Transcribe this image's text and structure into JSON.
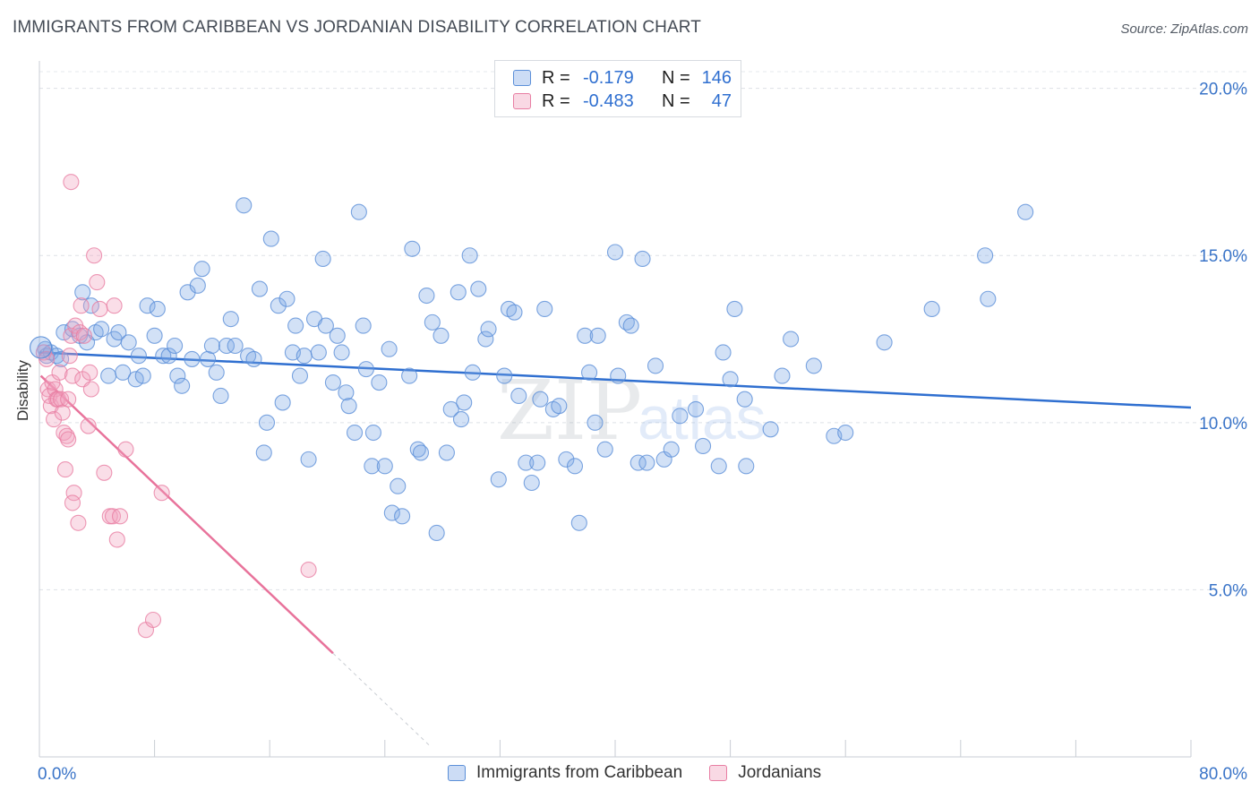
{
  "header": {
    "title": "IMMIGRANTS FROM CARIBBEAN VS JORDANIAN DISABILITY CORRELATION CHART",
    "source": "Source: ZipAtlas.com"
  },
  "legend": {
    "r_label": "R =",
    "n_label": "N =",
    "rows": [
      {
        "r": "-0.179",
        "n": "146",
        "color": "#7fa8e6"
      },
      {
        "r": "-0.483",
        "n": "47",
        "color": "#f0a0bc"
      }
    ]
  },
  "watermark": {
    "zip": "ZIP",
    "atlas": "atlas"
  },
  "chart_data": {
    "type": "scatter",
    "ylabel": "Disability",
    "xlim": [
      0,
      80
    ],
    "ylim": [
      0,
      20.5
    ],
    "y_ticks": [
      {
        "value": 5,
        "label": "5.0%"
      },
      {
        "value": 10,
        "label": "10.0%"
      },
      {
        "value": 15,
        "label": "15.0%"
      },
      {
        "value": 20,
        "label": "20.0%"
      }
    ],
    "x_tick_labels": [
      {
        "value": 0,
        "label": "0.0%"
      },
      {
        "value": 80,
        "label": "80.0%"
      }
    ],
    "x_minor_ticks": [
      0,
      8,
      16,
      24,
      32,
      40,
      48,
      56,
      64,
      72,
      80
    ],
    "grid": true,
    "series": [
      {
        "name": "Immigrants from Caribbean",
        "color": "#7fa8e6",
        "stroke": "#5b8fd8",
        "trend": {
          "x": [
            0,
            80
          ],
          "y": [
            12.1,
            10.45
          ],
          "color": "#2f6fd0"
        },
        "points": [
          [
            0.4,
            12.2
          ],
          [
            0.5,
            12.0
          ],
          [
            0.8,
            12.1
          ],
          [
            1.2,
            12.0
          ],
          [
            1.5,
            11.9
          ],
          [
            1.7,
            12.7
          ],
          [
            2.3,
            12.8
          ],
          [
            2.8,
            12.6
          ],
          [
            3.0,
            13.9
          ],
          [
            3.3,
            12.4
          ],
          [
            3.6,
            13.5
          ],
          [
            3.9,
            12.7
          ],
          [
            4.3,
            12.8
          ],
          [
            4.8,
            11.4
          ],
          [
            5.2,
            12.5
          ],
          [
            5.5,
            12.7
          ],
          [
            5.8,
            11.5
          ],
          [
            6.2,
            12.4
          ],
          [
            6.7,
            11.3
          ],
          [
            6.9,
            12.0
          ],
          [
            7.2,
            11.4
          ],
          [
            7.5,
            13.5
          ],
          [
            8.0,
            12.6
          ],
          [
            8.2,
            13.4
          ],
          [
            8.6,
            12.0
          ],
          [
            9.0,
            12.0
          ],
          [
            9.4,
            12.3
          ],
          [
            9.6,
            11.4
          ],
          [
            9.9,
            11.1
          ],
          [
            10.3,
            13.9
          ],
          [
            10.6,
            11.9
          ],
          [
            11.0,
            14.1
          ],
          [
            11.3,
            14.6
          ],
          [
            11.7,
            11.9
          ],
          [
            12.0,
            12.3
          ],
          [
            12.3,
            11.5
          ],
          [
            12.6,
            10.8
          ],
          [
            13.0,
            12.3
          ],
          [
            13.3,
            13.1
          ],
          [
            13.6,
            12.3
          ],
          [
            14.2,
            16.5
          ],
          [
            14.5,
            12.0
          ],
          [
            14.9,
            11.9
          ],
          [
            15.3,
            14.0
          ],
          [
            15.6,
            9.1
          ],
          [
            15.8,
            10.0
          ],
          [
            16.1,
            15.5
          ],
          [
            16.6,
            13.5
          ],
          [
            16.9,
            10.6
          ],
          [
            17.2,
            13.7
          ],
          [
            17.6,
            12.1
          ],
          [
            17.8,
            12.9
          ],
          [
            18.1,
            11.4
          ],
          [
            18.4,
            12.0
          ],
          [
            18.7,
            8.9
          ],
          [
            19.1,
            13.1
          ],
          [
            19.4,
            12.1
          ],
          [
            19.7,
            14.9
          ],
          [
            19.9,
            12.9
          ],
          [
            20.4,
            11.2
          ],
          [
            20.7,
            12.6
          ],
          [
            21.0,
            12.1
          ],
          [
            21.3,
            10.9
          ],
          [
            21.5,
            10.5
          ],
          [
            21.9,
            9.7
          ],
          [
            22.2,
            16.3
          ],
          [
            22.5,
            12.9
          ],
          [
            22.7,
            11.6
          ],
          [
            23.1,
            8.7
          ],
          [
            23.2,
            9.7
          ],
          [
            23.6,
            11.2
          ],
          [
            24.0,
            8.7
          ],
          [
            24.3,
            12.2
          ],
          [
            24.5,
            7.3
          ],
          [
            24.9,
            8.1
          ],
          [
            25.2,
            7.2
          ],
          [
            25.7,
            11.4
          ],
          [
            25.9,
            15.2
          ],
          [
            26.3,
            9.2
          ],
          [
            26.5,
            9.1
          ],
          [
            26.9,
            13.8
          ],
          [
            27.3,
            13.0
          ],
          [
            27.6,
            6.7
          ],
          [
            27.9,
            12.6
          ],
          [
            28.3,
            9.1
          ],
          [
            28.6,
            10.4
          ],
          [
            29.1,
            13.9
          ],
          [
            29.3,
            10.1
          ],
          [
            29.5,
            10.6
          ],
          [
            29.9,
            15.0
          ],
          [
            30.1,
            11.5
          ],
          [
            30.5,
            14.0
          ],
          [
            31.0,
            12.5
          ],
          [
            31.2,
            12.8
          ],
          [
            31.9,
            8.3
          ],
          [
            32.3,
            11.4
          ],
          [
            32.6,
            13.4
          ],
          [
            33.0,
            13.3
          ],
          [
            33.3,
            10.8
          ],
          [
            33.8,
            8.8
          ],
          [
            34.2,
            8.2
          ],
          [
            34.6,
            8.8
          ],
          [
            34.8,
            10.7
          ],
          [
            35.1,
            13.4
          ],
          [
            35.7,
            10.4
          ],
          [
            36.1,
            10.5
          ],
          [
            36.6,
            8.9
          ],
          [
            37.2,
            8.7
          ],
          [
            37.5,
            7.0
          ],
          [
            37.9,
            12.6
          ],
          [
            38.2,
            11.5
          ],
          [
            38.6,
            10.0
          ],
          [
            38.8,
            12.6
          ],
          [
            39.3,
            9.2
          ],
          [
            40.0,
            15.1
          ],
          [
            40.2,
            11.4
          ],
          [
            40.8,
            13.0
          ],
          [
            41.1,
            12.9
          ],
          [
            41.6,
            8.8
          ],
          [
            41.9,
            14.9
          ],
          [
            42.2,
            8.8
          ],
          [
            42.8,
            11.7
          ],
          [
            43.4,
            8.9
          ],
          [
            43.9,
            9.2
          ],
          [
            44.5,
            10.2
          ],
          [
            45.6,
            10.4
          ],
          [
            46.1,
            9.3
          ],
          [
            47.2,
            8.7
          ],
          [
            47.5,
            12.1
          ],
          [
            48.0,
            11.3
          ],
          [
            48.3,
            13.4
          ],
          [
            49.0,
            10.7
          ],
          [
            49.1,
            8.7
          ],
          [
            50.8,
            9.8
          ],
          [
            51.6,
            11.4
          ],
          [
            52.2,
            12.5
          ],
          [
            53.8,
            11.7
          ],
          [
            55.2,
            9.6
          ],
          [
            56.0,
            9.7
          ],
          [
            58.7,
            12.4
          ],
          [
            62.0,
            13.4
          ],
          [
            65.7,
            15.0
          ],
          [
            65.9,
            13.7
          ],
          [
            68.5,
            16.3
          ]
        ]
      },
      {
        "name": "Jordanians",
        "color": "#f0a0bc",
        "stroke": "#e87ea3",
        "trend": {
          "x": [
            0.1,
            20.4
          ],
          "y": [
            11.4,
            3.1
          ],
          "dash_to": [
            27.2,
            0.3
          ],
          "color": "#e8739b"
        },
        "points": [
          [
            0.3,
            12.1
          ],
          [
            0.5,
            11.9
          ],
          [
            0.6,
            11.0
          ],
          [
            0.7,
            10.8
          ],
          [
            0.8,
            10.5
          ],
          [
            0.9,
            11.2
          ],
          [
            1.0,
            10.1
          ],
          [
            1.1,
            11.0
          ],
          [
            1.2,
            10.7
          ],
          [
            1.3,
            10.7
          ],
          [
            1.4,
            11.5
          ],
          [
            1.5,
            10.7
          ],
          [
            1.6,
            10.3
          ],
          [
            1.7,
            9.7
          ],
          [
            1.8,
            8.6
          ],
          [
            1.9,
            9.6
          ],
          [
            2.0,
            10.7
          ],
          [
            2.1,
            12.0
          ],
          [
            2.2,
            12.6
          ],
          [
            2.3,
            11.4
          ],
          [
            2.4,
            7.9
          ],
          [
            2.5,
            12.9
          ],
          [
            2.7,
            7.0
          ],
          [
            2.8,
            12.7
          ],
          [
            2.9,
            13.5
          ],
          [
            3.0,
            11.3
          ],
          [
            3.1,
            12.6
          ],
          [
            3.4,
            9.9
          ],
          [
            3.5,
            11.5
          ],
          [
            3.6,
            11.0
          ],
          [
            3.8,
            15.0
          ],
          [
            4.0,
            14.2
          ],
          [
            4.2,
            13.4
          ],
          [
            4.5,
            8.5
          ],
          [
            4.9,
            7.2
          ],
          [
            5.1,
            7.2
          ],
          [
            5.2,
            13.5
          ],
          [
            5.4,
            6.5
          ],
          [
            5.6,
            7.2
          ],
          [
            6.0,
            9.2
          ],
          [
            7.4,
            3.8
          ],
          [
            7.9,
            4.1
          ],
          [
            8.5,
            7.9
          ],
          [
            18.7,
            5.6
          ],
          [
            2.2,
            17.2
          ],
          [
            2.3,
            7.6
          ],
          [
            2.0,
            9.5
          ]
        ]
      }
    ]
  }
}
